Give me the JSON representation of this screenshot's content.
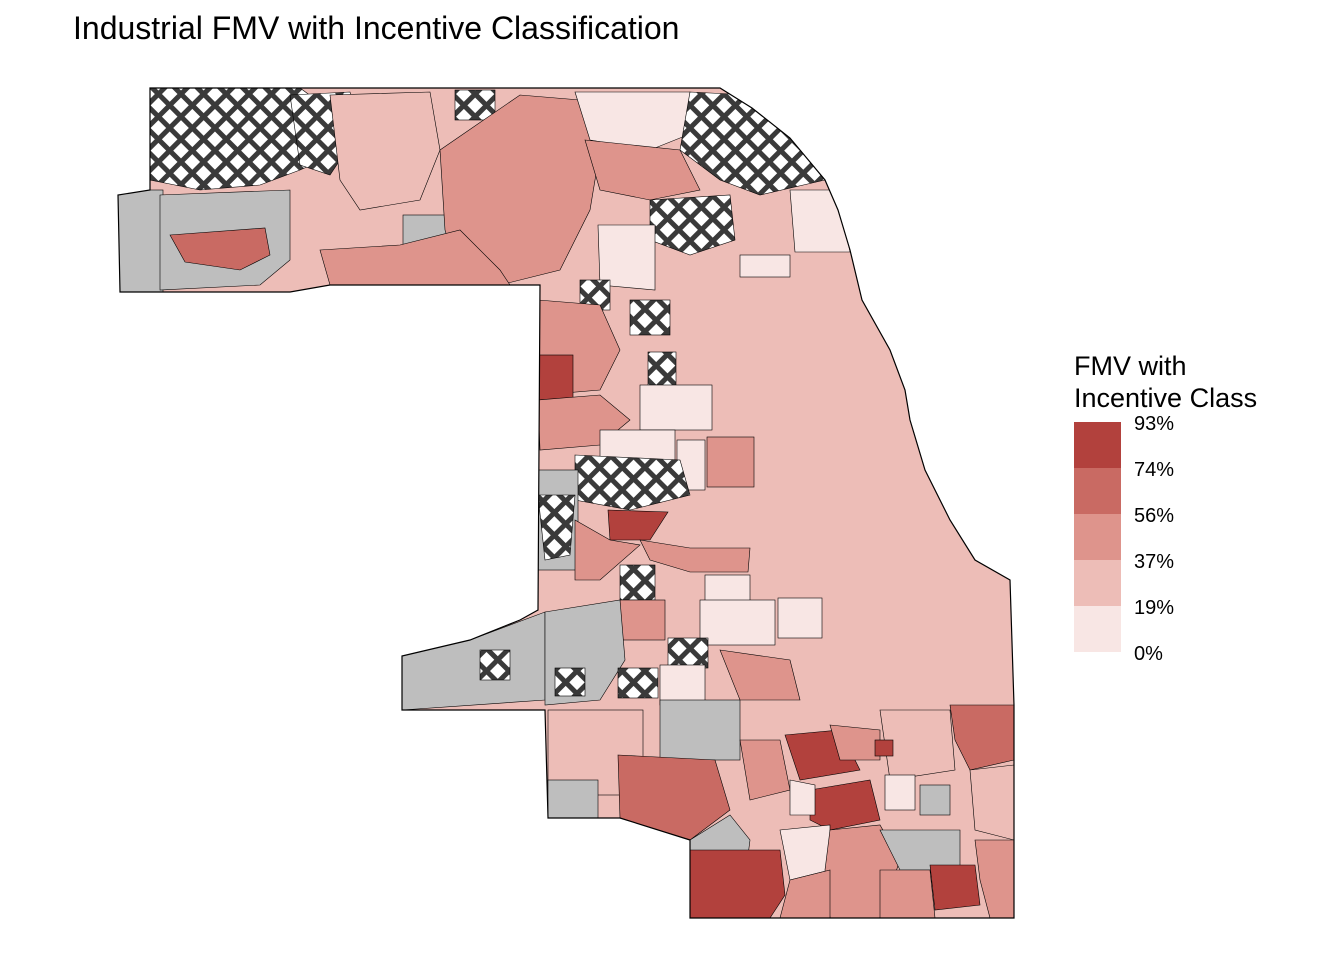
{
  "title": "Industrial FMV with Incentive Classification",
  "legend": {
    "title_lines": [
      "FMV with",
      "Incentive Class"
    ],
    "labels": [
      "93%",
      "74%",
      "56%",
      "37%",
      "19%",
      "0%"
    ],
    "colors": [
      "#b2413d",
      "#c96a63",
      "#de948c",
      "#edbdb7",
      "#f8e6e4"
    ]
  },
  "map_colors": {
    "no_data": "#bebebe",
    "hatch_fill": "#ffffff",
    "hatch_line": "#3a3a3a",
    "boundary": "#000000"
  }
}
